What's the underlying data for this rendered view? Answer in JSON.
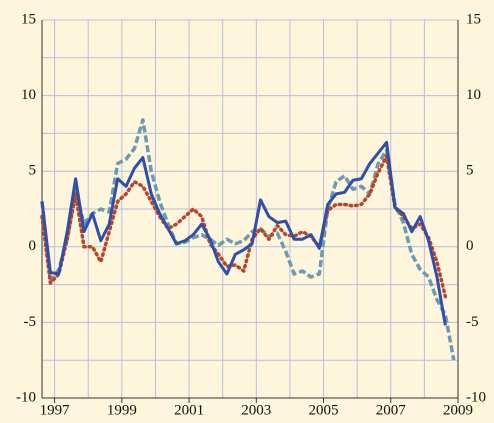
{
  "chart_data": {
    "type": "line",
    "x": [
      1996.625,
      1996.875,
      1997.125,
      1997.375,
      1997.625,
      1997.875,
      1998.125,
      1998.375,
      1998.625,
      1998.875,
      1999.125,
      1999.375,
      1999.625,
      1999.875,
      2000.125,
      2000.375,
      2000.625,
      2000.875,
      2001.125,
      2001.375,
      2001.625,
      2001.875,
      2002.125,
      2002.375,
      2002.625,
      2002.875,
      2003.125,
      2003.375,
      2003.625,
      2003.875,
      2004.125,
      2004.375,
      2004.625,
      2004.875,
      2005.125,
      2005.375,
      2005.625,
      2005.875,
      2006.125,
      2006.375,
      2006.625,
      2006.875,
      2007.125,
      2007.375,
      2007.625,
      2007.875,
      2008.125,
      2008.375,
      2008.625,
      2008.875
    ],
    "series": [
      {
        "color": "#2f4fa8",
        "style": "solid",
        "values": [
          3,
          -1.7,
          -1.8,
          1,
          4.5,
          1,
          2.2,
          0.4,
          1.5,
          4.5,
          4,
          5.2,
          5.9,
          3.5,
          2.2,
          1.2,
          0.2,
          0.4,
          0.8,
          1.5,
          0.5,
          -1,
          -1.8,
          -0.5,
          -0.2,
          0.2,
          3.1,
          2,
          1.6,
          1.7,
          0.5,
          0.5,
          0.8,
          -0.1,
          2.8,
          3.5,
          3.6,
          4.4,
          4.5,
          5.5,
          6.2,
          6.9,
          2.6,
          2.2,
          1,
          2,
          0.4,
          -2,
          -5.2,
          null
        ]
      },
      {
        "color": "#b8452c",
        "style": "dotted",
        "values": [
          2,
          -2.4,
          -1.8,
          0.5,
          3.5,
          0,
          0,
          -1,
          1,
          3,
          3.5,
          4.3,
          4,
          3,
          2,
          1.2,
          1.5,
          2,
          2.5,
          2,
          0.2,
          -0.5,
          -1.3,
          -1.2,
          -1.6,
          0.5,
          1.2,
          0.5,
          1.4,
          0.8,
          0.7,
          1,
          0.7,
          0,
          2.4,
          2.8,
          2.8,
          2.7,
          2.8,
          3.5,
          4.9,
          6,
          2.6,
          2,
          1.2,
          1.5,
          0.6,
          -1,
          -3.3,
          null
        ]
      },
      {
        "color": "#6b9bb2",
        "style": "dashed",
        "values": [
          3,
          -2.3,
          -1.5,
          0.5,
          3.7,
          1.5,
          2.2,
          2.5,
          2.3,
          5.5,
          5.8,
          6.5,
          8.4,
          5,
          3,
          1.5,
          0.2,
          0.3,
          0.6,
          0.8,
          0.5,
          0.1,
          0.5,
          0.2,
          0.4,
          1,
          1.2,
          0.7,
          0.9,
          -0.3,
          -1.8,
          -1.6,
          -2,
          -1.8,
          2.5,
          4.3,
          4.7,
          3.8,
          4,
          3.5,
          5.5,
          6.4,
          2.8,
          1.6,
          -0.5,
          -1.5,
          -2,
          -3.5,
          -4.5,
          -7.5
        ]
      }
    ],
    "xlim": [
      1996.625,
      2009
    ],
    "xticks": [
      1997,
      1999,
      2001,
      2003,
      2005,
      2007,
      2009
    ],
    "xminor": [
      1998,
      2000,
      2002,
      2004,
      2006,
      2008
    ],
    "ylim": [
      -10,
      15
    ],
    "yticks": [
      -10,
      -5,
      0,
      5,
      10,
      15
    ],
    "yminor": [
      -7.5,
      -2.5,
      2.5,
      7.5,
      12.5
    ],
    "grid": true,
    "right_axis_labels": true
  }
}
